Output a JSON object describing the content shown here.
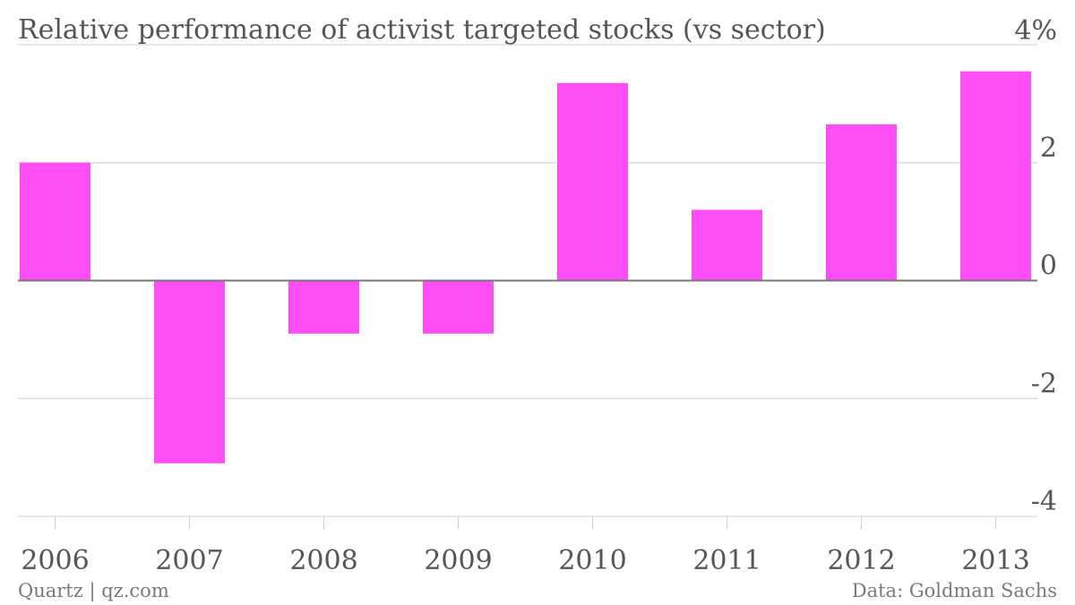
{
  "chart_data": {
    "type": "bar",
    "title": "Relative performance of activist targeted stocks (vs sector)",
    "categories": [
      "2006",
      "2007",
      "2008",
      "2009",
      "2010",
      "2011",
      "2012",
      "2013"
    ],
    "values": [
      2.0,
      -3.1,
      -0.9,
      -0.9,
      3.35,
      1.2,
      2.65,
      3.55
    ],
    "xlabel": "",
    "ylabel": "",
    "ylim": [
      -4,
      4
    ],
    "yticks": [
      4,
      2,
      0,
      -2,
      -4
    ],
    "ytick_labels": [
      "4%",
      "2",
      "0",
      "-2",
      "-4"
    ],
    "ytick_position": "right",
    "grid": true,
    "legend": "none",
    "bar_color": "#ff4df5"
  },
  "footer": {
    "source_left": "Quartz | qz.com",
    "source_right": "Data: Goldman Sachs"
  }
}
